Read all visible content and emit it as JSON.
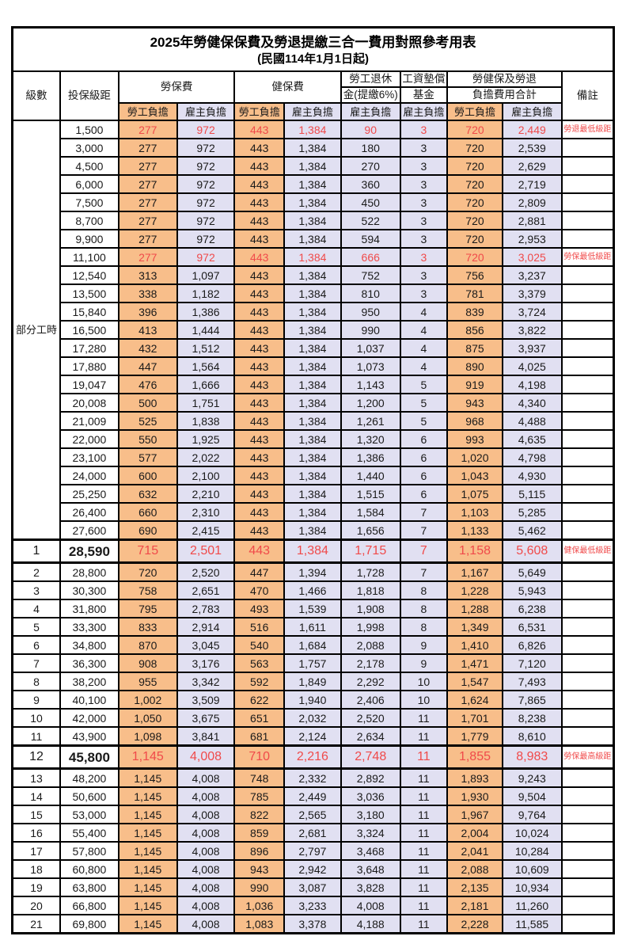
{
  "title": "2025年勞健保保費及勞退提繳三合一費用對照參考用表",
  "subtitle": "(民國114年1月1日起)",
  "header": {
    "level": "級數",
    "bracket": "投保級距",
    "labor_insurance": "勞保費",
    "health_insurance": "健保費",
    "pension_line1": "勞工退休",
    "pension_line2": "金(提繳6%)",
    "wage_fund_line1": "工資墊償",
    "wage_fund_line2": "基金",
    "total_line1": "勞健保及勞退",
    "total_line2": "負擔費用合計",
    "remark": "備註",
    "employee_label": "勞工負擔",
    "employer_label": "雇主負擔"
  },
  "part_time_label": "部分工時",
  "part_time_rowspan": 23,
  "colors": {
    "employee_bg": "#F8BE8A",
    "employer_bg": "#E1E0F2",
    "highlight_red": "#F04A4A",
    "border": "#000000"
  },
  "rows": [
    {
      "level": "",
      "bracket": "1,500",
      "values": [
        "277",
        "972",
        "443",
        "1,384",
        "90",
        "3",
        "720",
        "2,449"
      ],
      "note": "勞退最低級距",
      "red": true,
      "big": false
    },
    {
      "level": "",
      "bracket": "3,000",
      "values": [
        "277",
        "972",
        "443",
        "1,384",
        "180",
        "3",
        "720",
        "2,539"
      ],
      "note": "",
      "red": false,
      "big": false
    },
    {
      "level": "",
      "bracket": "4,500",
      "values": [
        "277",
        "972",
        "443",
        "1,384",
        "270",
        "3",
        "720",
        "2,629"
      ],
      "note": "",
      "red": false,
      "big": false
    },
    {
      "level": "",
      "bracket": "6,000",
      "values": [
        "277",
        "972",
        "443",
        "1,384",
        "360",
        "3",
        "720",
        "2,719"
      ],
      "note": "",
      "red": false,
      "big": false
    },
    {
      "level": "",
      "bracket": "7,500",
      "values": [
        "277",
        "972",
        "443",
        "1,384",
        "450",
        "3",
        "720",
        "2,809"
      ],
      "note": "",
      "red": false,
      "big": false
    },
    {
      "level": "",
      "bracket": "8,700",
      "values": [
        "277",
        "972",
        "443",
        "1,384",
        "522",
        "3",
        "720",
        "2,881"
      ],
      "note": "",
      "red": false,
      "big": false
    },
    {
      "level": "",
      "bracket": "9,900",
      "values": [
        "277",
        "972",
        "443",
        "1,384",
        "594",
        "3",
        "720",
        "2,953"
      ],
      "note": "",
      "red": false,
      "big": false
    },
    {
      "level": "",
      "bracket": "11,100",
      "values": [
        "277",
        "972",
        "443",
        "1,384",
        "666",
        "3",
        "720",
        "3,025"
      ],
      "note": "勞保最低級距",
      "red": true,
      "big": false
    },
    {
      "level": "",
      "bracket": "12,540",
      "values": [
        "313",
        "1,097",
        "443",
        "1,384",
        "752",
        "3",
        "756",
        "3,237"
      ],
      "note": "",
      "red": false,
      "big": false
    },
    {
      "level": "",
      "bracket": "13,500",
      "values": [
        "338",
        "1,182",
        "443",
        "1,384",
        "810",
        "3",
        "781",
        "3,379"
      ],
      "note": "",
      "red": false,
      "big": false
    },
    {
      "level": "",
      "bracket": "15,840",
      "values": [
        "396",
        "1,386",
        "443",
        "1,384",
        "950",
        "4",
        "839",
        "3,724"
      ],
      "note": "",
      "red": false,
      "big": false
    },
    {
      "level": "",
      "bracket": "16,500",
      "values": [
        "413",
        "1,444",
        "443",
        "1,384",
        "990",
        "4",
        "856",
        "3,822"
      ],
      "note": "",
      "red": false,
      "big": false
    },
    {
      "level": "",
      "bracket": "17,280",
      "values": [
        "432",
        "1,512",
        "443",
        "1,384",
        "1,037",
        "4",
        "875",
        "3,937"
      ],
      "note": "",
      "red": false,
      "big": false
    },
    {
      "level": "",
      "bracket": "17,880",
      "values": [
        "447",
        "1,564",
        "443",
        "1,384",
        "1,073",
        "4",
        "890",
        "4,025"
      ],
      "note": "",
      "red": false,
      "big": false
    },
    {
      "level": "",
      "bracket": "19,047",
      "values": [
        "476",
        "1,666",
        "443",
        "1,384",
        "1,143",
        "5",
        "919",
        "4,198"
      ],
      "note": "",
      "red": false,
      "big": false
    },
    {
      "level": "",
      "bracket": "20,008",
      "values": [
        "500",
        "1,751",
        "443",
        "1,384",
        "1,200",
        "5",
        "943",
        "4,340"
      ],
      "note": "",
      "red": false,
      "big": false
    },
    {
      "level": "",
      "bracket": "21,009",
      "values": [
        "525",
        "1,838",
        "443",
        "1,384",
        "1,261",
        "5",
        "968",
        "4,488"
      ],
      "note": "",
      "red": false,
      "big": false
    },
    {
      "level": "",
      "bracket": "22,000",
      "values": [
        "550",
        "1,925",
        "443",
        "1,384",
        "1,320",
        "6",
        "993",
        "4,635"
      ],
      "note": "",
      "red": false,
      "big": false
    },
    {
      "level": "",
      "bracket": "23,100",
      "values": [
        "577",
        "2,022",
        "443",
        "1,384",
        "1,386",
        "6",
        "1,020",
        "4,798"
      ],
      "note": "",
      "red": false,
      "big": false
    },
    {
      "level": "",
      "bracket": "24,000",
      "values": [
        "600",
        "2,100",
        "443",
        "1,384",
        "1,440",
        "6",
        "1,043",
        "4,930"
      ],
      "note": "",
      "red": false,
      "big": false
    },
    {
      "level": "",
      "bracket": "25,250",
      "values": [
        "632",
        "2,210",
        "443",
        "1,384",
        "1,515",
        "6",
        "1,075",
        "5,115"
      ],
      "note": "",
      "red": false,
      "big": false
    },
    {
      "level": "",
      "bracket": "26,400",
      "values": [
        "660",
        "2,310",
        "443",
        "1,384",
        "1,584",
        "7",
        "1,103",
        "5,285"
      ],
      "note": "",
      "red": false,
      "big": false
    },
    {
      "level": "",
      "bracket": "27,600",
      "values": [
        "690",
        "2,415",
        "443",
        "1,384",
        "1,656",
        "7",
        "1,133",
        "5,462"
      ],
      "note": "",
      "red": false,
      "big": false
    },
    {
      "level": "1",
      "bracket": "28,590",
      "values": [
        "715",
        "2,501",
        "443",
        "1,384",
        "1,715",
        "7",
        "1,158",
        "5,608"
      ],
      "note": "健保最低級距",
      "red": true,
      "big": true
    },
    {
      "level": "2",
      "bracket": "28,800",
      "values": [
        "720",
        "2,520",
        "447",
        "1,394",
        "1,728",
        "7",
        "1,167",
        "5,649"
      ],
      "note": "",
      "red": false,
      "big": false
    },
    {
      "level": "3",
      "bracket": "30,300",
      "values": [
        "758",
        "2,651",
        "470",
        "1,466",
        "1,818",
        "8",
        "1,228",
        "5,943"
      ],
      "note": "",
      "red": false,
      "big": false
    },
    {
      "level": "4",
      "bracket": "31,800",
      "values": [
        "795",
        "2,783",
        "493",
        "1,539",
        "1,908",
        "8",
        "1,288",
        "6,238"
      ],
      "note": "",
      "red": false,
      "big": false
    },
    {
      "level": "5",
      "bracket": "33,300",
      "values": [
        "833",
        "2,914",
        "516",
        "1,611",
        "1,998",
        "8",
        "1,349",
        "6,531"
      ],
      "note": "",
      "red": false,
      "big": false
    },
    {
      "level": "6",
      "bracket": "34,800",
      "values": [
        "870",
        "3,045",
        "540",
        "1,684",
        "2,088",
        "9",
        "1,410",
        "6,826"
      ],
      "note": "",
      "red": false,
      "big": false
    },
    {
      "level": "7",
      "bracket": "36,300",
      "values": [
        "908",
        "3,176",
        "563",
        "1,757",
        "2,178",
        "9",
        "1,471",
        "7,120"
      ],
      "note": "",
      "red": false,
      "big": false
    },
    {
      "level": "8",
      "bracket": "38,200",
      "values": [
        "955",
        "3,342",
        "592",
        "1,849",
        "2,292",
        "10",
        "1,547",
        "7,493"
      ],
      "note": "",
      "red": false,
      "big": false
    },
    {
      "level": "9",
      "bracket": "40,100",
      "values": [
        "1,002",
        "3,509",
        "622",
        "1,940",
        "2,406",
        "10",
        "1,624",
        "7,865"
      ],
      "note": "",
      "red": false,
      "big": false
    },
    {
      "level": "10",
      "bracket": "42,000",
      "values": [
        "1,050",
        "3,675",
        "651",
        "2,032",
        "2,520",
        "11",
        "1,701",
        "8,238"
      ],
      "note": "",
      "red": false,
      "big": false
    },
    {
      "level": "11",
      "bracket": "43,900",
      "values": [
        "1,098",
        "3,841",
        "681",
        "2,124",
        "2,634",
        "11",
        "1,779",
        "8,610"
      ],
      "note": "",
      "red": false,
      "big": false
    },
    {
      "level": "12",
      "bracket": "45,800",
      "values": [
        "1,145",
        "4,008",
        "710",
        "2,216",
        "2,748",
        "11",
        "1,855",
        "8,983"
      ],
      "note": "勞保最高級距",
      "red": true,
      "big": true
    },
    {
      "level": "13",
      "bracket": "48,200",
      "values": [
        "1,145",
        "4,008",
        "748",
        "2,332",
        "2,892",
        "11",
        "1,893",
        "9,243"
      ],
      "note": "",
      "red": false,
      "big": false
    },
    {
      "level": "14",
      "bracket": "50,600",
      "values": [
        "1,145",
        "4,008",
        "785",
        "2,449",
        "3,036",
        "11",
        "1,930",
        "9,504"
      ],
      "note": "",
      "red": false,
      "big": false
    },
    {
      "level": "15",
      "bracket": "53,000",
      "values": [
        "1,145",
        "4,008",
        "822",
        "2,565",
        "3,180",
        "11",
        "1,967",
        "9,764"
      ],
      "note": "",
      "red": false,
      "big": false
    },
    {
      "level": "16",
      "bracket": "55,400",
      "values": [
        "1,145",
        "4,008",
        "859",
        "2,681",
        "3,324",
        "11",
        "2,004",
        "10,024"
      ],
      "note": "",
      "red": false,
      "big": false
    },
    {
      "level": "17",
      "bracket": "57,800",
      "values": [
        "1,145",
        "4,008",
        "896",
        "2,797",
        "3,468",
        "11",
        "2,041",
        "10,284"
      ],
      "note": "",
      "red": false,
      "big": false
    },
    {
      "level": "18",
      "bracket": "60,800",
      "values": [
        "1,145",
        "4,008",
        "943",
        "2,942",
        "3,648",
        "11",
        "2,088",
        "10,609"
      ],
      "note": "",
      "red": false,
      "big": false
    },
    {
      "level": "19",
      "bracket": "63,800",
      "values": [
        "1,145",
        "4,008",
        "990",
        "3,087",
        "3,828",
        "11",
        "2,135",
        "10,934"
      ],
      "note": "",
      "red": false,
      "big": false
    },
    {
      "level": "20",
      "bracket": "66,800",
      "values": [
        "1,145",
        "4,008",
        "1,036",
        "3,233",
        "4,008",
        "11",
        "2,181",
        "11,260"
      ],
      "note": "",
      "red": false,
      "big": false
    },
    {
      "level": "21",
      "bracket": "69,800",
      "values": [
        "1,145",
        "4,008",
        "1,083",
        "3,378",
        "4,188",
        "11",
        "2,228",
        "11,585"
      ],
      "note": "",
      "red": false,
      "big": false
    }
  ]
}
